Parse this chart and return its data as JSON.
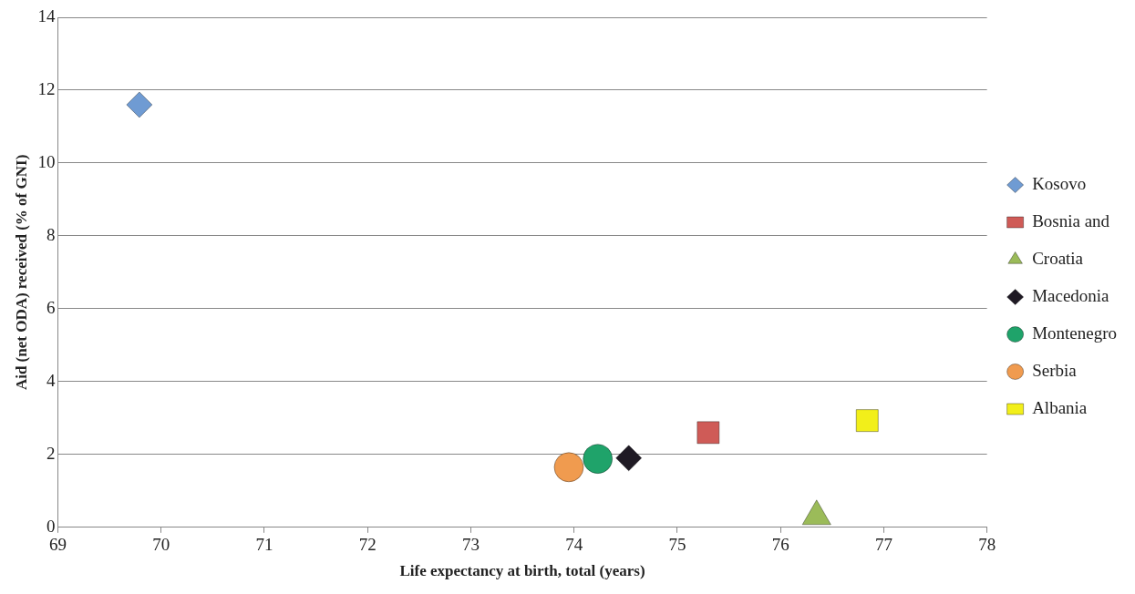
{
  "chart_data": {
    "type": "scatter",
    "xlabel": "Life expectancy at birth, total (years)",
    "ylabel": "Aid (net ODA) received (% of GNI)",
    "xlim": [
      69,
      78
    ],
    "xticks": [
      69,
      70,
      71,
      72,
      73,
      74,
      75,
      76,
      77,
      78
    ],
    "ylim": [
      0,
      14
    ],
    "yticks": [
      0,
      2,
      4,
      6,
      8,
      10,
      12,
      14
    ],
    "grid": "y",
    "legend": "right",
    "series": [
      {
        "name": "Kosovo",
        "color": "#6f9bd3",
        "marker": "diamond",
        "x": [
          69.79
        ],
        "values": [
          11.6
        ]
      },
      {
        "name": "Bosnia and",
        "color": "#cf5b57",
        "marker": "square",
        "x": [
          75.3
        ],
        "values": [
          2.6
        ]
      },
      {
        "name": "Croatia",
        "color": "#9bbb59",
        "marker": "triangle",
        "x": [
          76.35
        ],
        "values": [
          0.3
        ]
      },
      {
        "name": "Macedonia",
        "color": "#1f1a24",
        "marker": "diamond",
        "x": [
          74.53
        ],
        "values": [
          1.9
        ]
      },
      {
        "name": "Montenegro",
        "color": "#1fa36a",
        "marker": "circle",
        "x": [
          74.23
        ],
        "values": [
          1.88
        ]
      },
      {
        "name": "Serbia",
        "color": "#f09b4f",
        "marker": "circle",
        "x": [
          73.95
        ],
        "values": [
          1.65
        ]
      },
      {
        "name": "Albania",
        "color": "#f2ef1a",
        "marker": "square",
        "x": [
          76.84
        ],
        "values": [
          2.93
        ]
      }
    ]
  }
}
